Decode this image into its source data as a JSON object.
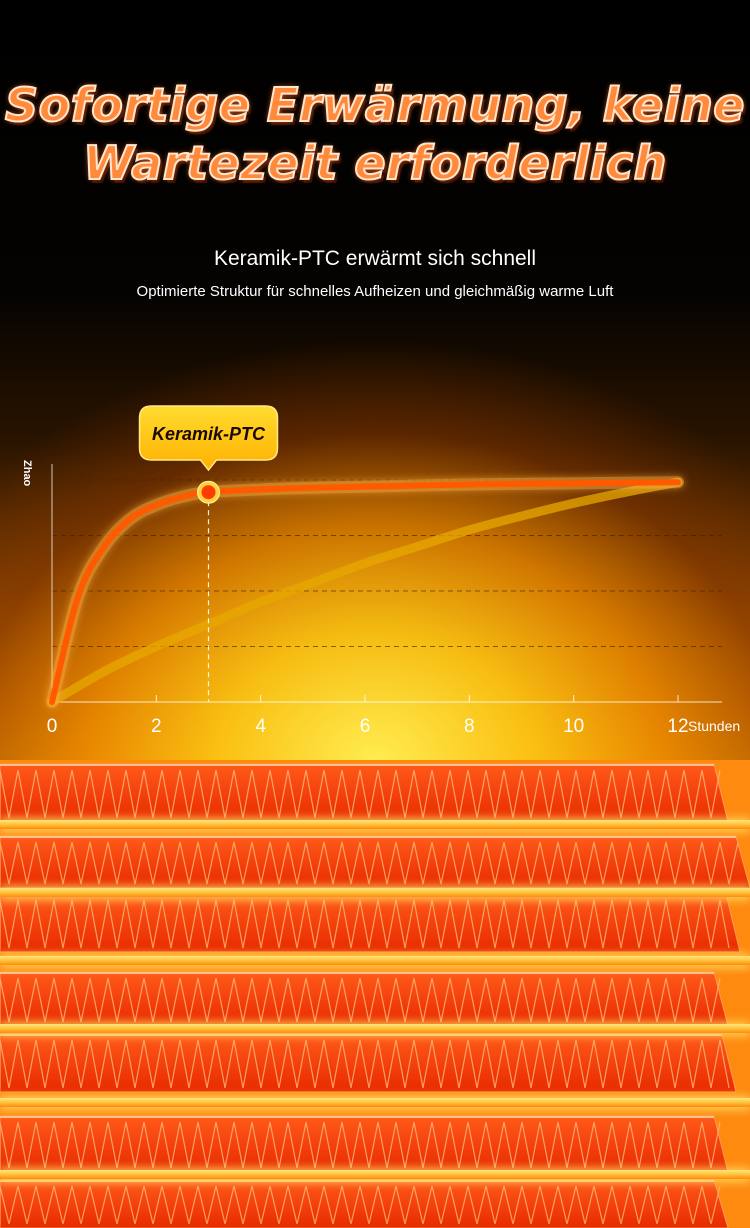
{
  "header": {
    "title_line1": "Sofortige Erwärmung, keine",
    "title_line2": "Wartezeit erforderlich",
    "subtitle": "Keramik-PTC erwärmt sich schnell",
    "description": "Optimierte Struktur für schnelles Aufheizen und gleichmäßig warme Luft"
  },
  "chart_data": {
    "type": "line",
    "ylabel": "Zhao",
    "xunit": "Stunden",
    "xlim": [
      0,
      12
    ],
    "ylim": [
      0,
      4
    ],
    "xticks": [
      "0",
      "2",
      "4",
      "6",
      "8",
      "10",
      "12"
    ],
    "grid": true,
    "series": [
      {
        "name": "Keramik-PTC",
        "x": [
          0,
          0.5,
          1,
          1.5,
          2,
          2.5,
          3,
          4,
          5,
          6,
          7,
          8,
          9,
          10,
          11,
          12
        ],
        "y": [
          0,
          1.9,
          2.8,
          3.3,
          3.55,
          3.7,
          3.78,
          3.83,
          3.86,
          3.88,
          3.9,
          3.92,
          3.93,
          3.94,
          3.95,
          3.96
        ],
        "color": "#ff5a00"
      },
      {
        "x": [
          0,
          1,
          2,
          3,
          4,
          5,
          6,
          7,
          8,
          9,
          10,
          11,
          12
        ],
        "y": [
          0,
          0.55,
          1.0,
          1.4,
          1.8,
          2.15,
          2.5,
          2.8,
          3.1,
          3.35,
          3.58,
          3.78,
          3.96
        ],
        "color": "#e7a800"
      }
    ],
    "annotation": {
      "label": "Keramik-PTC",
      "x": 3,
      "y": 3.78,
      "color": "#ffc000"
    }
  }
}
